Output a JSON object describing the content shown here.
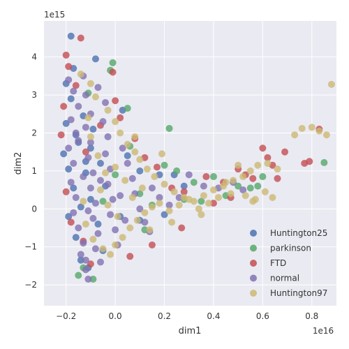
{
  "chart_data": {
    "type": "scatter",
    "title": "",
    "xlabel": "dim1",
    "ylabel": "dim2",
    "x_offset_text": "1e16",
    "y_offset_text": "1e15",
    "xlim": [
      -0.29,
      0.9
    ],
    "ylim": [
      -2.55,
      4.95
    ],
    "xticks": [
      -0.2,
      0.0,
      0.2,
      0.4,
      0.6,
      0.8
    ],
    "xtick_labels": [
      "−0.2",
      "0.0",
      "0.2",
      "0.4",
      "0.6",
      "0.8"
    ],
    "yticks": [
      -2,
      -1,
      0,
      1,
      2,
      3,
      4
    ],
    "ytick_labels": [
      "−2",
      "−1",
      "0",
      "1",
      "2",
      "3",
      "4"
    ],
    "grid": true,
    "legend_position": "bottom-right",
    "series": [
      {
        "name": "Huntington25",
        "color": "#4c72b0",
        "points": [
          [
            -0.18,
            4.55
          ],
          [
            -0.17,
            3.7
          ],
          [
            -0.2,
            3.3
          ],
          [
            -0.18,
            2.9
          ],
          [
            -0.2,
            2.25
          ],
          [
            -0.21,
            1.45
          ],
          [
            -0.19,
            1.05
          ],
          [
            -0.17,
            0.55
          ],
          [
            -0.19,
            -0.2
          ],
          [
            -0.16,
            -0.75
          ],
          [
            -0.14,
            -1.35
          ],
          [
            -0.11,
            -1.55
          ],
          [
            -0.13,
            2.45
          ],
          [
            -0.15,
            1.75
          ],
          [
            -0.12,
            0.95
          ],
          [
            -0.1,
            0.25
          ],
          [
            -0.08,
            3.95
          ],
          [
            -0.1,
            1.6
          ],
          [
            -0.06,
            1.2
          ],
          [
            -0.07,
            -0.4
          ],
          [
            -0.05,
            -1.1
          ],
          [
            0.03,
            2.6
          ],
          [
            0.05,
            1.4
          ],
          [
            0.1,
            1.0
          ],
          [
            0.18,
            0.9
          ],
          [
            0.24,
            0.9
          ],
          [
            0.28,
            0.6
          ],
          [
            0.02,
            -0.2
          ],
          [
            0.1,
            -0.3
          ],
          [
            0.2,
            -0.15
          ],
          [
            -0.14,
            0.05
          ],
          [
            -0.12,
            1.25
          ],
          [
            -0.09,
            2.1
          ],
          [
            -0.16,
            1.95
          ],
          [
            -0.04,
            0.6
          ]
        ]
      },
      {
        "name": "parkinson",
        "color": "#55a868",
        "points": [
          [
            -0.01,
            3.85
          ],
          [
            -0.02,
            3.65
          ],
          [
            0.05,
            2.65
          ],
          [
            0.22,
            2.12
          ],
          [
            0.2,
            1.15
          ],
          [
            0.25,
            1.0
          ],
          [
            0.32,
            0.7
          ],
          [
            0.4,
            0.85
          ],
          [
            0.5,
            0.6
          ],
          [
            0.55,
            0.55
          ],
          [
            0.58,
            0.6
          ],
          [
            0.85,
            1.22
          ],
          [
            -0.15,
            -1.75
          ],
          [
            -0.13,
            -1.55
          ],
          [
            -0.09,
            -1.85
          ],
          [
            0.1,
            0.4
          ],
          [
            0.15,
            0.1
          ],
          [
            0.28,
            0.25
          ],
          [
            0.45,
            0.35
          ],
          [
            0.6,
            0.85
          ],
          [
            0.06,
            1.65
          ],
          [
            -0.05,
            0.2
          ],
          [
            -0.11,
            3.05
          ],
          [
            0.0,
            0.9
          ],
          [
            0.35,
            0.2
          ],
          [
            0.12,
            -0.55
          ]
        ]
      },
      {
        "name": "FTD",
        "color": "#c44e52",
        "points": [
          [
            -0.2,
            4.05
          ],
          [
            -0.14,
            4.5
          ],
          [
            -0.19,
            3.75
          ],
          [
            -0.16,
            3.25
          ],
          [
            -0.21,
            2.7
          ],
          [
            -0.22,
            1.95
          ],
          [
            -0.2,
            0.45
          ],
          [
            -0.18,
            -0.35
          ],
          [
            -0.13,
            -0.85
          ],
          [
            -0.1,
            -1.45
          ],
          [
            -0.01,
            3.6
          ],
          [
            0.0,
            2.85
          ],
          [
            0.02,
            2.4
          ],
          [
            0.08,
            1.85
          ],
          [
            0.12,
            1.35
          ],
          [
            0.17,
            1.1
          ],
          [
            0.23,
            0.55
          ],
          [
            0.28,
            0.45
          ],
          [
            0.37,
            0.85
          ],
          [
            0.44,
            0.7
          ],
          [
            0.5,
            1.05
          ],
          [
            0.53,
            0.9
          ],
          [
            0.56,
            0.8
          ],
          [
            0.6,
            1.6
          ],
          [
            0.62,
            1.35
          ],
          [
            0.64,
            1.15
          ],
          [
            0.66,
            0.8
          ],
          [
            0.69,
            1.5
          ],
          [
            0.77,
            1.2
          ],
          [
            0.79,
            1.25
          ],
          [
            0.83,
            2.1
          ],
          [
            0.47,
            0.3
          ],
          [
            0.4,
            0.15
          ],
          [
            0.06,
            -1.25
          ],
          [
            -0.12,
            1.5
          ],
          [
            -0.06,
            2.2
          ],
          [
            0.15,
            -0.95
          ],
          [
            0.27,
            -0.5
          ]
        ]
      },
      {
        "name": "normal",
        "color": "#8172b2",
        "points": [
          [
            -0.19,
            3.4
          ],
          [
            -0.17,
            3.1
          ],
          [
            -0.15,
            2.7
          ],
          [
            -0.18,
            2.35
          ],
          [
            -0.16,
            2.0
          ],
          [
            -0.19,
            1.6
          ],
          [
            -0.17,
            1.2
          ],
          [
            -0.18,
            0.7
          ],
          [
            -0.16,
            0.3
          ],
          [
            -0.17,
            -0.1
          ],
          [
            -0.15,
            -0.5
          ],
          [
            -0.13,
            -0.9
          ],
          [
            -0.14,
            -1.2
          ],
          [
            -0.12,
            -1.6
          ],
          [
            -0.11,
            -1.85
          ],
          [
            -0.13,
            3.5
          ],
          [
            -0.12,
            3.0
          ],
          [
            -0.1,
            2.5
          ],
          [
            -0.12,
            2.15
          ],
          [
            -0.1,
            1.75
          ],
          [
            -0.11,
            1.35
          ],
          [
            -0.09,
            0.95
          ],
          [
            -0.1,
            0.55
          ],
          [
            -0.08,
            0.15
          ],
          [
            -0.09,
            -0.25
          ],
          [
            -0.07,
            -0.65
          ],
          [
            -0.08,
            -1.05
          ],
          [
            -0.06,
            -1.4
          ],
          [
            -0.04,
            2.8
          ],
          [
            -0.05,
            2.3
          ],
          [
            -0.03,
            1.9
          ],
          [
            -0.04,
            1.45
          ],
          [
            -0.02,
            1.05
          ],
          [
            -0.03,
            0.65
          ],
          [
            -0.01,
            0.25
          ],
          [
            -0.02,
            -0.15
          ],
          [
            0.0,
            -0.55
          ],
          [
            0.01,
            -0.95
          ],
          [
            0.03,
            1.6
          ],
          [
            0.05,
            1.2
          ],
          [
            0.07,
            0.8
          ],
          [
            0.08,
            0.4
          ],
          [
            0.1,
            0.0
          ],
          [
            0.12,
            -0.35
          ],
          [
            0.14,
            -0.6
          ],
          [
            0.18,
            0.3
          ],
          [
            0.22,
            0.1
          ],
          [
            0.26,
            0.3
          ],
          [
            0.3,
            0.9
          ],
          [
            0.36,
            0.6
          ],
          [
            0.42,
            0.55
          ],
          [
            0.48,
            0.7
          ],
          [
            0.52,
            0.5
          ],
          [
            -0.15,
            1.8
          ],
          [
            -0.13,
            0.85
          ],
          [
            -0.11,
            -0.05
          ],
          [
            -0.06,
            0.75
          ],
          [
            0.02,
            0.35
          ],
          [
            0.04,
            -0.3
          ],
          [
            0.15,
            0.55
          ],
          [
            -0.12,
            -1.35
          ],
          [
            -0.07,
            3.2
          ]
        ]
      },
      {
        "name": "Huntington97",
        "color": "#ccb974",
        "points": [
          [
            -0.14,
            3.55
          ],
          [
            -0.1,
            3.3
          ],
          [
            -0.08,
            2.95
          ],
          [
            -0.03,
            2.6
          ],
          [
            0.0,
            2.3
          ],
          [
            0.02,
            2.0
          ],
          [
            0.05,
            1.7
          ],
          [
            0.08,
            1.5
          ],
          [
            0.1,
            1.3
          ],
          [
            0.13,
            1.05
          ],
          [
            0.16,
            0.85
          ],
          [
            0.2,
            0.65
          ],
          [
            0.24,
            0.45
          ],
          [
            0.28,
            0.3
          ],
          [
            0.32,
            0.2
          ],
          [
            0.36,
            0.35
          ],
          [
            0.4,
            0.5
          ],
          [
            0.44,
            0.6
          ],
          [
            0.48,
            0.75
          ],
          [
            0.52,
            0.85
          ],
          [
            0.55,
            1.0
          ],
          [
            0.58,
            1.15
          ],
          [
            0.62,
            1.2
          ],
          [
            0.66,
            1.05
          ],
          [
            0.73,
            1.95
          ],
          [
            0.76,
            2.12
          ],
          [
            0.8,
            2.15
          ],
          [
            0.83,
            2.05
          ],
          [
            0.86,
            1.95
          ],
          [
            0.88,
            3.28
          ],
          [
            -0.12,
            -0.4
          ],
          [
            -0.09,
            -0.8
          ],
          [
            -0.05,
            -1.05
          ],
          [
            -0.02,
            -1.2
          ],
          [
            0.0,
            -0.95
          ],
          [
            0.03,
            -0.75
          ],
          [
            0.06,
            -0.5
          ],
          [
            0.09,
            -0.3
          ],
          [
            0.12,
            -0.1
          ],
          [
            0.15,
            0.05
          ],
          [
            0.18,
            0.15
          ],
          [
            0.22,
            -0.05
          ],
          [
            0.26,
            0.1
          ],
          [
            0.3,
            0.25
          ],
          [
            0.34,
            0.0
          ],
          [
            0.38,
            0.15
          ],
          [
            0.42,
            0.3
          ],
          [
            0.47,
            0.4
          ],
          [
            0.53,
            0.35
          ],
          [
            0.57,
            0.25
          ],
          [
            0.61,
            0.45
          ],
          [
            0.64,
            0.3
          ],
          [
            -0.06,
            0.5
          ],
          [
            -0.03,
            0.1
          ],
          [
            0.01,
            -0.2
          ],
          [
            0.04,
            0.75
          ],
          [
            0.07,
            0.3
          ],
          [
            0.11,
            0.55
          ],
          [
            -0.1,
            1.9
          ],
          [
            -0.07,
            1.4
          ],
          [
            -0.04,
            0.95
          ],
          [
            0.19,
            1.45
          ],
          [
            0.23,
            -0.35
          ],
          [
            0.35,
            -0.15
          ],
          [
            0.45,
            0.7
          ],
          [
            0.5,
            1.15
          ],
          [
            0.56,
            0.2
          ],
          [
            -0.13,
            0.2
          ],
          [
            -0.11,
            2.4
          ],
          [
            0.0,
            1.1
          ],
          [
            0.14,
            -0.55
          ],
          [
            0.08,
            1.9
          ]
        ]
      }
    ]
  }
}
